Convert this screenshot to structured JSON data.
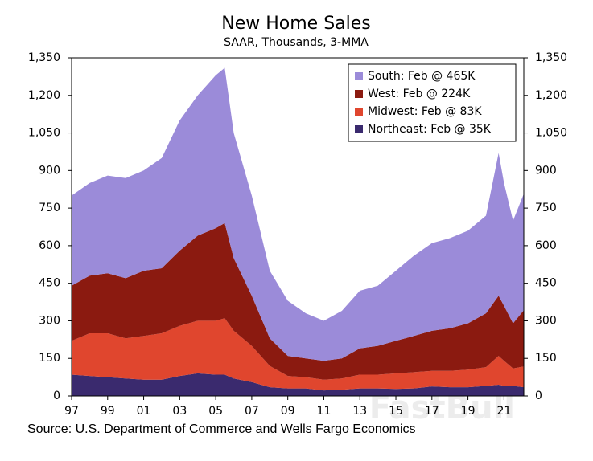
{
  "chart_data": {
    "type": "stacked-area",
    "title": "New Home Sales",
    "subtitle": "SAAR, Thousands, 3-MMA",
    "source": "Source: U.S. Department of Commerce and Wells Fargo Economics",
    "watermark": "FastBull",
    "x": [
      1997,
      1998,
      1999,
      2000,
      2001,
      2002,
      2003,
      2004,
      2005,
      2005.5,
      2006,
      2007,
      2008,
      2009,
      2010,
      2011,
      2012,
      2013,
      2014,
      2015,
      2016,
      2017,
      2018,
      2019,
      2020,
      2020.7,
      2021,
      2021.5,
      2022.1
    ],
    "series": [
      {
        "name": "South: Feb @ 465K",
        "color": "#9b8bd9",
        "values": [
          360,
          370,
          390,
          400,
          400,
          440,
          520,
          560,
          610,
          620,
          500,
          400,
          270,
          220,
          180,
          160,
          190,
          230,
          240,
          280,
          320,
          350,
          360,
          370,
          390,
          570,
          490,
          410,
          465
        ]
      },
      {
        "name": "West: Feb @ 224K",
        "color": "#8b1a10",
        "values": [
          220,
          230,
          240,
          240,
          260,
          260,
          300,
          340,
          370,
          380,
          290,
          200,
          110,
          80,
          75,
          75,
          80,
          105,
          115,
          130,
          145,
          160,
          170,
          185,
          215,
          240,
          220,
          180,
          224
        ]
      },
      {
        "name": "Midwest: Feb @ 83K",
        "color": "#e0462e",
        "values": [
          135,
          170,
          175,
          160,
          175,
          185,
          200,
          210,
          215,
          225,
          190,
          145,
          85,
          50,
          45,
          43,
          45,
          55,
          55,
          62,
          65,
          62,
          65,
          70,
          75,
          115,
          100,
          70,
          83
        ]
      },
      {
        "name": "Northeast: Feb @ 35K",
        "color": "#3a2a6e",
        "values": [
          85,
          80,
          75,
          70,
          65,
          65,
          80,
          90,
          85,
          85,
          70,
          55,
          35,
          30,
          30,
          22,
          25,
          30,
          30,
          28,
          30,
          38,
          35,
          35,
          40,
          45,
          40,
          40,
          35
        ]
      }
    ],
    "xlim": [
      1997,
      2022.1
    ],
    "xticks": [
      {
        "value": 1997,
        "label": "97"
      },
      {
        "value": 1999,
        "label": "99"
      },
      {
        "value": 2001,
        "label": "01"
      },
      {
        "value": 2003,
        "label": "03"
      },
      {
        "value": 2005,
        "label": "05"
      },
      {
        "value": 2007,
        "label": "07"
      },
      {
        "value": 2009,
        "label": "09"
      },
      {
        "value": 2011,
        "label": "11"
      },
      {
        "value": 2013,
        "label": "13"
      },
      {
        "value": 2015,
        "label": "15"
      },
      {
        "value": 2017,
        "label": "17"
      },
      {
        "value": 2019,
        "label": "19"
      },
      {
        "value": 2021,
        "label": "21"
      }
    ],
    "ylim": [
      0,
      1350
    ],
    "yticks": [
      0,
      150,
      300,
      450,
      600,
      750,
      900,
      {
        "value": 1050,
        "label": "1,050"
      },
      {
        "value": 1200,
        "label": "1,200"
      },
      {
        "value": 1350,
        "label": "1,350"
      }
    ],
    "y2lim": [
      0,
      1350
    ],
    "y2ticks": [
      0,
      150,
      300,
      450,
      600,
      750,
      900,
      {
        "value": 1050,
        "label": "1,050"
      },
      {
        "value": 1200,
        "label": "1,200"
      },
      {
        "value": 1350,
        "label": "1,350"
      }
    ],
    "legend": "upper right"
  }
}
